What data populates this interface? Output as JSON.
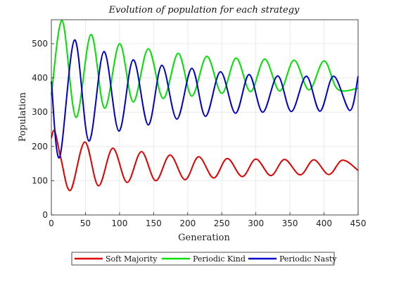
{
  "chart_data": {
    "type": "line",
    "title": "Evolution of population for each strategy",
    "xlabel": "Generation",
    "ylabel": "Population",
    "xlim": [
      0,
      450
    ],
    "ylim": [
      0,
      570
    ],
    "xticks": [
      0,
      50,
      100,
      150,
      200,
      250,
      300,
      350,
      400,
      450
    ],
    "yticks": [
      0,
      100,
      200,
      300,
      400,
      500
    ],
    "grid": true,
    "legend": "bottom-outside",
    "series": [
      {
        "name": "Soft Majority",
        "color": "#e00000",
        "x": [
          0,
          5,
          14,
          28,
          49,
          69,
          90,
          111,
          132,
          153,
          174,
          196,
          216,
          238,
          258,
          280,
          300,
          322,
          342,
          365,
          385,
          407,
          427,
          450
        ],
        "y": [
          225,
          245,
          165,
          72,
          213,
          85,
          195,
          95,
          185,
          100,
          175,
          103,
          170,
          108,
          165,
          112,
          163,
          115,
          162,
          117,
          161,
          118,
          160,
          130
        ]
      },
      {
        "name": "Periodic Kind",
        "color": "#00e000",
        "x": [
          0,
          16,
          36,
          58,
          78,
          100,
          120,
          142,
          164,
          186,
          206,
          228,
          250,
          271,
          292,
          313,
          335,
          356,
          378,
          400,
          420,
          450
        ],
        "y": [
          350,
          567,
          285,
          527,
          312,
          500,
          330,
          485,
          340,
          472,
          347,
          463,
          355,
          458,
          360,
          455,
          362,
          452,
          365,
          450,
          367,
          370
        ]
      },
      {
        "name": "Periodic Nasty",
        "color": "#0000cc",
        "x": [
          0,
          12,
          34,
          55,
          77,
          99,
          120,
          142,
          162,
          184,
          206,
          226,
          248,
          270,
          290,
          310,
          332,
          352,
          374,
          394,
          414,
          438,
          450
        ],
        "y": [
          390,
          168,
          511,
          216,
          477,
          245,
          453,
          263,
          437,
          280,
          428,
          288,
          418,
          297,
          410,
          300,
          406,
          302,
          405,
          303,
          405,
          305,
          405
        ]
      }
    ]
  }
}
